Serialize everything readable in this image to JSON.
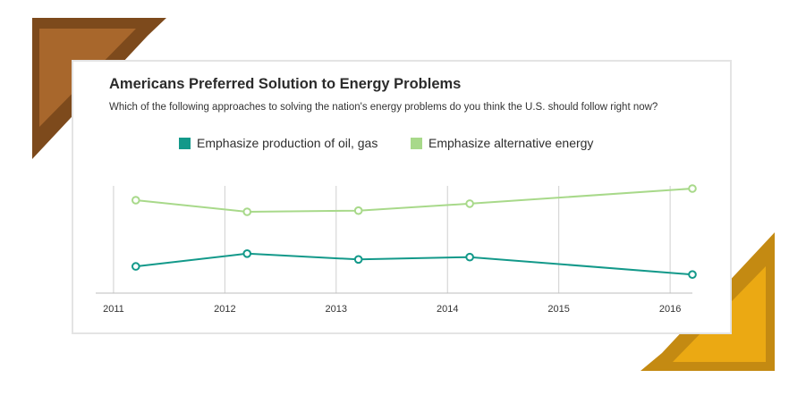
{
  "chart_data": {
    "type": "line",
    "title": "Americans Preferred Solution to Energy Problems",
    "subtitle": "Which of the following approaches to solving the nation's energy problems do you think the U.S. should follow right now?",
    "x": [
      2011.2,
      2012.2,
      2013.2,
      2014.2,
      2016.2
    ],
    "x_ticks": [
      "2011",
      "2012",
      "2013",
      "2014",
      "2015",
      "2016"
    ],
    "x_tick_values": [
      2011,
      2012,
      2013,
      2014,
      2015,
      2016
    ],
    "xlim": [
      2010.84,
      2016.2
    ],
    "ylim": [
      0,
      100
    ],
    "series": [
      {
        "name": "Emphasize production of oil, gas",
        "color": "#13998a",
        "values": [
          23,
          34,
          29,
          31,
          16
        ]
      },
      {
        "name": "Emphasize alternative energy",
        "color": "#a8d98a",
        "values": [
          80,
          70,
          71,
          77,
          90
        ]
      }
    ],
    "grid": true,
    "legend_position": "top"
  },
  "colors": {
    "decoration_brown": "#7d4a1c",
    "decoration_brown_light": "#a8672c",
    "decoration_gold": "#c48a12",
    "decoration_gold_light": "#eba913"
  }
}
